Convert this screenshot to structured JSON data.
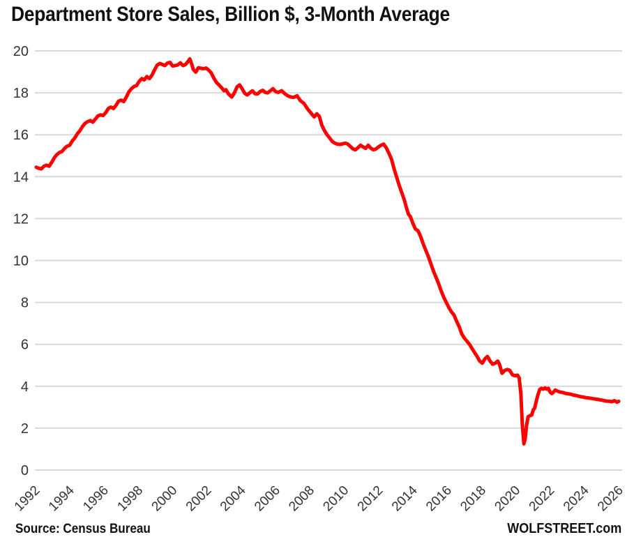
{
  "title": "Department Store Sales, Billion $, 3-Month Average",
  "footer": {
    "source": "Source: Census Bureau",
    "brand": "WOLFSTREET.com"
  },
  "chart_data": {
    "type": "line",
    "title": "Department Store Sales, Billion $, 3-Month Average",
    "xlabel": "",
    "ylabel": "",
    "xlim": [
      1991.92,
      2026.15
    ],
    "ylim": [
      0,
      20
    ],
    "grid": "horizontal-only",
    "legend": "none",
    "colors": {
      "line": "#fe0000",
      "grid": "#d9d9d9",
      "axis_text": "#333333",
      "title_text": "#111111"
    },
    "x_ticks": [
      1992,
      1994,
      1996,
      1998,
      2000,
      2002,
      2004,
      2006,
      2008,
      2010,
      2012,
      2014,
      2016,
      2018,
      2020,
      2022,
      2024,
      2026
    ],
    "x_tick_labels": [
      "1992",
      "1994",
      "1996",
      "1998",
      "2000",
      "2002",
      "2004",
      "2006",
      "2008",
      "2010",
      "2012",
      "2014",
      "2016",
      "2018",
      "2020",
      "2022",
      "2024",
      "2026"
    ],
    "y_ticks": [
      0,
      2,
      4,
      6,
      8,
      10,
      12,
      14,
      16,
      18,
      20
    ],
    "y_tick_labels": [
      "0",
      "2",
      "4",
      "6",
      "8",
      "10",
      "12",
      "14",
      "16",
      "18",
      "20"
    ],
    "series": [
      {
        "name": "Department store sales, billion $, 3-month average",
        "points": [
          [
            1992.0,
            14.45
          ],
          [
            1992.15,
            14.4
          ],
          [
            1992.3,
            14.37
          ],
          [
            1992.45,
            14.5
          ],
          [
            1992.6,
            14.55
          ],
          [
            1992.75,
            14.5
          ],
          [
            1992.9,
            14.68
          ],
          [
            1993.05,
            14.9
          ],
          [
            1993.2,
            15.05
          ],
          [
            1993.35,
            15.15
          ],
          [
            1993.5,
            15.2
          ],
          [
            1993.65,
            15.35
          ],
          [
            1993.8,
            15.45
          ],
          [
            1993.95,
            15.5
          ],
          [
            1994.1,
            15.7
          ],
          [
            1994.25,
            15.85
          ],
          [
            1994.4,
            16.05
          ],
          [
            1994.55,
            16.2
          ],
          [
            1994.7,
            16.4
          ],
          [
            1994.85,
            16.55
          ],
          [
            1995.0,
            16.63
          ],
          [
            1995.15,
            16.68
          ],
          [
            1995.3,
            16.6
          ],
          [
            1995.45,
            16.75
          ],
          [
            1995.6,
            16.9
          ],
          [
            1995.75,
            16.95
          ],
          [
            1995.9,
            16.92
          ],
          [
            1996.05,
            17.05
          ],
          [
            1996.2,
            17.25
          ],
          [
            1996.35,
            17.32
          ],
          [
            1996.5,
            17.25
          ],
          [
            1996.65,
            17.4
          ],
          [
            1996.8,
            17.6
          ],
          [
            1996.95,
            17.65
          ],
          [
            1997.1,
            17.58
          ],
          [
            1997.25,
            17.8
          ],
          [
            1997.4,
            18.05
          ],
          [
            1997.55,
            18.2
          ],
          [
            1997.7,
            18.3
          ],
          [
            1997.85,
            18.35
          ],
          [
            1998.0,
            18.55
          ],
          [
            1998.15,
            18.68
          ],
          [
            1998.3,
            18.62
          ],
          [
            1998.45,
            18.78
          ],
          [
            1998.6,
            18.68
          ],
          [
            1998.75,
            18.85
          ],
          [
            1998.9,
            19.1
          ],
          [
            1999.05,
            19.32
          ],
          [
            1999.2,
            19.4
          ],
          [
            1999.35,
            19.35
          ],
          [
            1999.5,
            19.3
          ],
          [
            1999.65,
            19.42
          ],
          [
            1999.8,
            19.45
          ],
          [
            1999.95,
            19.28
          ],
          [
            2000.1,
            19.3
          ],
          [
            2000.25,
            19.33
          ],
          [
            2000.4,
            19.43
          ],
          [
            2000.55,
            19.3
          ],
          [
            2000.7,
            19.35
          ],
          [
            2000.85,
            19.5
          ],
          [
            2000.95,
            19.62
          ],
          [
            2001.05,
            19.4
          ],
          [
            2001.15,
            19.12
          ],
          [
            2001.3,
            18.99
          ],
          [
            2001.45,
            19.2
          ],
          [
            2001.6,
            19.17
          ],
          [
            2001.75,
            19.15
          ],
          [
            2001.9,
            19.18
          ],
          [
            2002.05,
            19.08
          ],
          [
            2002.2,
            18.95
          ],
          [
            2002.35,
            18.7
          ],
          [
            2002.5,
            18.5
          ],
          [
            2002.65,
            18.38
          ],
          [
            2002.8,
            18.25
          ],
          [
            2002.95,
            18.1
          ],
          [
            2003.05,
            18.15
          ],
          [
            2003.2,
            17.95
          ],
          [
            2003.4,
            17.8
          ],
          [
            2003.55,
            18.0
          ],
          [
            2003.7,
            18.28
          ],
          [
            2003.85,
            18.38
          ],
          [
            2004.0,
            18.2
          ],
          [
            2004.15,
            17.98
          ],
          [
            2004.3,
            17.9
          ],
          [
            2004.45,
            18.0
          ],
          [
            2004.6,
            18.1
          ],
          [
            2004.75,
            17.96
          ],
          [
            2004.9,
            17.95
          ],
          [
            2005.05,
            18.06
          ],
          [
            2005.2,
            18.12
          ],
          [
            2005.35,
            18.02
          ],
          [
            2005.5,
            18.0
          ],
          [
            2005.65,
            18.1
          ],
          [
            2005.8,
            18.2
          ],
          [
            2005.95,
            18.06
          ],
          [
            2006.1,
            18.02
          ],
          [
            2006.3,
            18.1
          ],
          [
            2006.5,
            17.95
          ],
          [
            2006.7,
            17.84
          ],
          [
            2006.85,
            17.8
          ],
          [
            2007.0,
            17.78
          ],
          [
            2007.2,
            17.86
          ],
          [
            2007.4,
            17.62
          ],
          [
            2007.6,
            17.5
          ],
          [
            2007.8,
            17.25
          ],
          [
            2007.95,
            17.1
          ],
          [
            2008.1,
            16.95
          ],
          [
            2008.2,
            16.85
          ],
          [
            2008.35,
            17.0
          ],
          [
            2008.5,
            16.88
          ],
          [
            2008.65,
            16.45
          ],
          [
            2008.8,
            16.2
          ],
          [
            2008.95,
            16.0
          ],
          [
            2009.1,
            15.85
          ],
          [
            2009.25,
            15.68
          ],
          [
            2009.4,
            15.6
          ],
          [
            2009.55,
            15.55
          ],
          [
            2009.7,
            15.54
          ],
          [
            2009.85,
            15.56
          ],
          [
            2010.0,
            15.6
          ],
          [
            2010.15,
            15.56
          ],
          [
            2010.3,
            15.45
          ],
          [
            2010.45,
            15.33
          ],
          [
            2010.6,
            15.28
          ],
          [
            2010.75,
            15.38
          ],
          [
            2010.9,
            15.5
          ],
          [
            2011.05,
            15.42
          ],
          [
            2011.2,
            15.35
          ],
          [
            2011.35,
            15.5
          ],
          [
            2011.5,
            15.36
          ],
          [
            2011.65,
            15.28
          ],
          [
            2011.8,
            15.32
          ],
          [
            2011.95,
            15.42
          ],
          [
            2012.1,
            15.5
          ],
          [
            2012.25,
            15.55
          ],
          [
            2012.4,
            15.38
          ],
          [
            2012.55,
            15.12
          ],
          [
            2012.7,
            14.85
          ],
          [
            2012.85,
            14.4
          ],
          [
            2013.0,
            14.0
          ],
          [
            2013.15,
            13.6
          ],
          [
            2013.3,
            13.25
          ],
          [
            2013.45,
            12.9
          ],
          [
            2013.6,
            12.45
          ],
          [
            2013.7,
            12.2
          ],
          [
            2013.8,
            12.1
          ],
          [
            2013.95,
            11.78
          ],
          [
            2014.1,
            11.5
          ],
          [
            2014.25,
            11.42
          ],
          [
            2014.4,
            11.15
          ],
          [
            2014.55,
            10.8
          ],
          [
            2014.7,
            10.5
          ],
          [
            2014.85,
            10.2
          ],
          [
            2015.0,
            9.85
          ],
          [
            2015.15,
            9.5
          ],
          [
            2015.3,
            9.2
          ],
          [
            2015.45,
            8.9
          ],
          [
            2015.6,
            8.55
          ],
          [
            2015.75,
            8.25
          ],
          [
            2015.9,
            8.0
          ],
          [
            2016.05,
            7.75
          ],
          [
            2016.2,
            7.55
          ],
          [
            2016.35,
            7.4
          ],
          [
            2016.5,
            7.1
          ],
          [
            2016.65,
            6.85
          ],
          [
            2016.8,
            6.5
          ],
          [
            2016.95,
            6.3
          ],
          [
            2017.1,
            6.15
          ],
          [
            2017.25,
            6.0
          ],
          [
            2017.4,
            5.8
          ],
          [
            2017.55,
            5.6
          ],
          [
            2017.7,
            5.42
          ],
          [
            2017.85,
            5.2
          ],
          [
            2018.0,
            5.1
          ],
          [
            2018.15,
            5.3
          ],
          [
            2018.3,
            5.42
          ],
          [
            2018.45,
            5.2
          ],
          [
            2018.6,
            5.05
          ],
          [
            2018.75,
            5.1
          ],
          [
            2018.9,
            5.2
          ],
          [
            2019.0,
            5.05
          ],
          [
            2019.15,
            4.62
          ],
          [
            2019.3,
            4.75
          ],
          [
            2019.45,
            4.8
          ],
          [
            2019.6,
            4.76
          ],
          [
            2019.75,
            4.55
          ],
          [
            2019.9,
            4.5
          ],
          [
            2020.05,
            4.53
          ],
          [
            2020.15,
            4.4
          ],
          [
            2020.25,
            3.6
          ],
          [
            2020.33,
            2.2
          ],
          [
            2020.42,
            1.25
          ],
          [
            2020.5,
            1.5
          ],
          [
            2020.58,
            2.15
          ],
          [
            2020.67,
            2.55
          ],
          [
            2020.78,
            2.6
          ],
          [
            2020.88,
            2.63
          ],
          [
            2020.97,
            2.88
          ],
          [
            2021.05,
            2.95
          ],
          [
            2021.15,
            3.3
          ],
          [
            2021.25,
            3.62
          ],
          [
            2021.35,
            3.85
          ],
          [
            2021.45,
            3.9
          ],
          [
            2021.55,
            3.86
          ],
          [
            2021.65,
            3.92
          ],
          [
            2021.75,
            3.86
          ],
          [
            2021.85,
            3.9
          ],
          [
            2021.95,
            3.72
          ],
          [
            2022.05,
            3.65
          ],
          [
            2022.15,
            3.72
          ],
          [
            2022.25,
            3.82
          ],
          [
            2022.4,
            3.76
          ],
          [
            2022.55,
            3.72
          ],
          [
            2022.7,
            3.7
          ],
          [
            2022.85,
            3.66
          ],
          [
            2023.0,
            3.64
          ],
          [
            2023.15,
            3.62
          ],
          [
            2023.3,
            3.58
          ],
          [
            2023.45,
            3.56
          ],
          [
            2023.6,
            3.53
          ],
          [
            2023.75,
            3.5
          ],
          [
            2023.9,
            3.48
          ],
          [
            2024.05,
            3.45
          ],
          [
            2024.2,
            3.44
          ],
          [
            2024.35,
            3.42
          ],
          [
            2024.5,
            3.4
          ],
          [
            2024.65,
            3.38
          ],
          [
            2024.8,
            3.36
          ],
          [
            2024.95,
            3.34
          ],
          [
            2025.1,
            3.31
          ],
          [
            2025.25,
            3.29
          ],
          [
            2025.4,
            3.28
          ],
          [
            2025.55,
            3.26
          ],
          [
            2025.7,
            3.31
          ],
          [
            2025.85,
            3.24
          ],
          [
            2025.95,
            3.28
          ]
        ]
      }
    ]
  }
}
